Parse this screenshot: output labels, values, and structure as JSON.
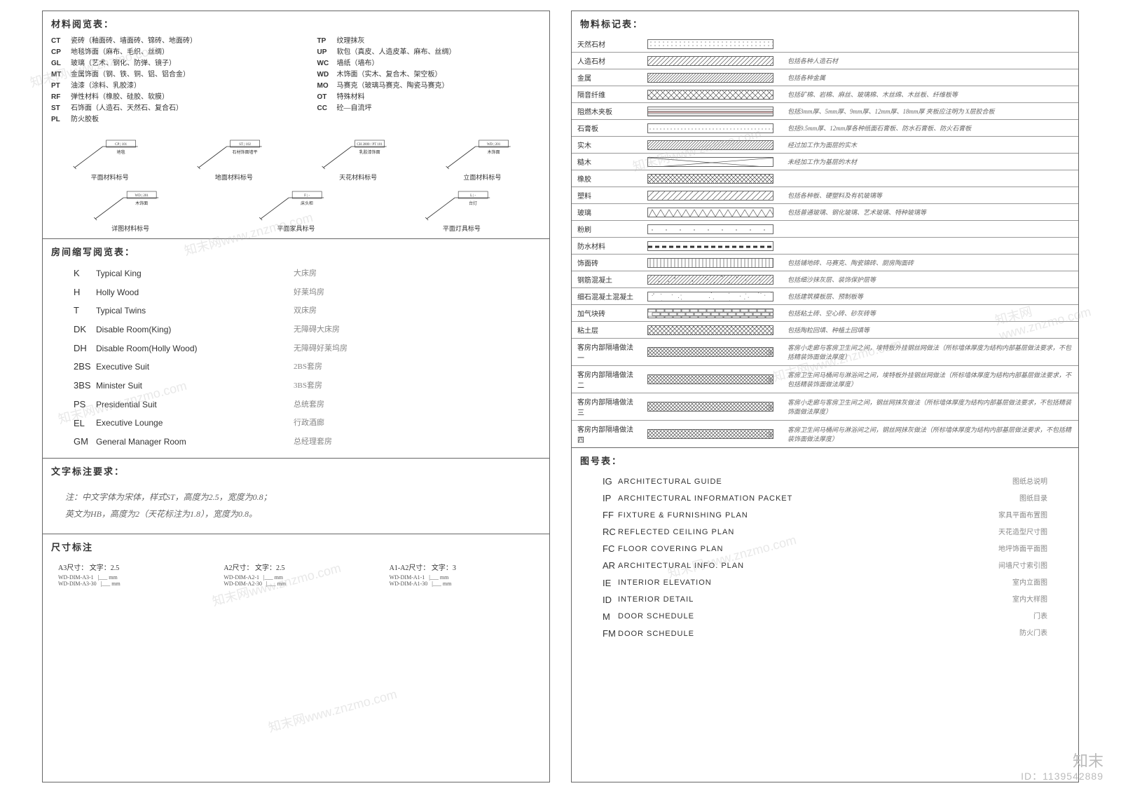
{
  "colors": {
    "border": "#666666",
    "text": "#333333",
    "muted": "#888888",
    "bg": "#ffffff"
  },
  "watermark": {
    "text": "知末网www.znzmo.com",
    "corner_label": "知末",
    "corner_id": "ID：1139542889"
  },
  "left": {
    "materialCodes": {
      "title": "材料阅览表：",
      "left_col": [
        {
          "code": "CT",
          "desc": "瓷砖（釉面砖、墙面砖、锦砖、地面砖）"
        },
        {
          "code": "CP",
          "desc": "地毯饰面（麻布、毛织、丝绸）"
        },
        {
          "code": "GL",
          "desc": "玻璃（艺术、钢化、防弹、镜子）"
        },
        {
          "code": "MT",
          "desc": "金属饰面（钢、铁、铜、铝、铝合金）"
        },
        {
          "code": "PT",
          "desc": "油漆（涂料、乳胶漆）"
        },
        {
          "code": "RF",
          "desc": "弹性材料（橡胶、硅胶、软膜）"
        },
        {
          "code": "ST",
          "desc": "石饰面（人造石、天然石、复合石）"
        },
        {
          "code": "PL",
          "desc": "防火胶板"
        }
      ],
      "right_col": [
        {
          "code": "TP",
          "desc": "纹理抹灰"
        },
        {
          "code": "UP",
          "desc": "软包（真皮、人造皮革、麻布、丝绸）"
        },
        {
          "code": "WC",
          "desc": "墙纸（墙布）"
        },
        {
          "code": "WD",
          "desc": "木饰面（实木、复合木、架空板）"
        },
        {
          "code": "MO",
          "desc": "马赛克（玻璃马赛克、陶瓷马赛克）"
        },
        {
          "code": "OT",
          "desc": "特殊材料"
        },
        {
          "code": "CC",
          "desc": "砼—自流坪"
        }
      ],
      "symbols_row1": [
        {
          "tag": "CP | 101",
          "name": "地毯",
          "caption": "平面材料标号"
        },
        {
          "tag": "ST | 102",
          "name": "石材饰面墙平",
          "caption": "地面材料标号"
        },
        {
          "tag": "CH 2800 / PT 101",
          "name": "乳胶漆饰面",
          "caption": "天花材料标号"
        },
        {
          "tag": "WD | 201",
          "name": "木饰面",
          "caption": "立面材料标号"
        }
      ],
      "symbols_row2": [
        {
          "tag": "WD | 201",
          "name": "木饰面",
          "caption": "详图材料标号"
        },
        {
          "tag": "F | -",
          "name": "床头柜",
          "caption": "平面家具标号"
        },
        {
          "tag": "L | -",
          "name": "台灯",
          "caption": "平面灯具标号"
        }
      ]
    },
    "roomAbbr": {
      "title": "房间缩写阅览表：",
      "rows": [
        {
          "code": "K",
          "en": "Typical King",
          "cn": "大床房"
        },
        {
          "code": "H",
          "en": "Holly Wood",
          "cn": "好莱坞房"
        },
        {
          "code": "T",
          "en": "Typical Twins",
          "cn": "双床房"
        },
        {
          "code": "DK",
          "en": "Disable Room(King)",
          "cn": "无障碍大床房"
        },
        {
          "code": "DH",
          "en": "Disable Room(Holly Wood)",
          "cn": "无障碍好莱坞房"
        },
        {
          "code": "2BS",
          "en": "Executive Suit",
          "cn": "2BS套房"
        },
        {
          "code": "3BS",
          "en": "Minister Suit",
          "cn": "3BS套房"
        },
        {
          "code": "PS",
          "en": "Presidential Suit",
          "cn": "总统套房"
        },
        {
          "code": "EL",
          "en": "Executive Lounge",
          "cn": "行政酒廊"
        },
        {
          "code": "GM",
          "en": "General Manager Room",
          "cn": "总经理套房"
        }
      ]
    },
    "textNote": {
      "title": "文字标注要求：",
      "line1": "注：中文字体为宋体，样式ST，高度为2.5，宽度为0.8；",
      "line2": "英文为HB，高度为2（天花标注为1.8），宽度为0.8。"
    },
    "dimNote": {
      "title": "尺寸标注",
      "items": [
        {
          "t": "A3尺寸：  文字：2.5",
          "s1": "WD-DIM-A3-1",
          "s2": "WD-DIM-A3-30"
        },
        {
          "t": "A2尺寸：  文字：2.5",
          "s1": "WD-DIM-A2-1",
          "s2": "WD-DIM-A2-30"
        },
        {
          "t": "A1-A2尺寸：  文字：3",
          "s1": "WD-DIM-A1-1",
          "s2": "WD-DIM-A1-30"
        }
      ]
    }
  },
  "right": {
    "materialMarks": {
      "title": "物料标记表：",
      "rows": [
        {
          "name": "天然石材",
          "pattern": "dots",
          "desc": ""
        },
        {
          "name": "人造石材",
          "pattern": "diag-l",
          "desc": "包括各种人造石材"
        },
        {
          "name": "金属",
          "pattern": "diag-d",
          "desc": "包括各种金属"
        },
        {
          "name": "隔音纤维",
          "pattern": "xhatch",
          "desc": "包括矿棉、岩棉、麻丝、玻璃棉、木丝绵、木丝板、纤维板等"
        },
        {
          "name": "阻燃木夹板",
          "pattern": "layered",
          "desc": "包括3mm厚、5mm厚、9mm厚、12mm厚、18mm厚 夹板应注明为 X层胶合板"
        },
        {
          "name": "石膏板",
          "pattern": "dots2",
          "desc": "包括9.5mm厚、12mm厚各种纸面石膏板、防水石膏板、防火石膏板"
        },
        {
          "name": "实木",
          "pattern": "diag-rd",
          "desc": "经过加工作为面层的实木"
        },
        {
          "name": "糙木",
          "pattern": "cross",
          "desc": "未经加工作为基层的木材"
        },
        {
          "name": "橡胶",
          "pattern": "xhatch2",
          "desc": ""
        },
        {
          "name": "塑料",
          "pattern": "diag-s",
          "desc": "包括各种板、硬塑料及有机玻璃等"
        },
        {
          "name": "玻璃",
          "pattern": "zigzag",
          "desc": "包括普通玻璃、钢化玻璃、艺术玻璃、特种玻璃等"
        },
        {
          "name": "粉刷",
          "pattern": "sparse",
          "desc": ""
        },
        {
          "name": "防水材料",
          "pattern": "dashline",
          "desc": ""
        },
        {
          "name": "饰面砖",
          "pattern": "vlines",
          "desc": "包括铺地砖、马赛克、陶瓷锦砖、厨房陶面砖"
        },
        {
          "name": "钢筋混凝土",
          "pattern": "concrete",
          "desc": "包括细沙抹灰层、装饰保护层等"
        },
        {
          "name": "细石混凝土混凝土",
          "pattern": "fine",
          "desc": "包括建筑模板层、预制板等"
        },
        {
          "name": "加气块砖",
          "pattern": "brick",
          "desc": "包括粘土砖、空心砖、砂灰砖等"
        },
        {
          "name": "粘土层",
          "pattern": "xhatch3",
          "desc": "包括陶粒回填、种植土回填等"
        },
        {
          "name": "客房内部隔墙做法一",
          "pattern": "wall1",
          "desc": "客房小走廊与客房卫生间之间，埃特板外挂钢丝网做法（所标墙体厚度为结构内部基层做法要求，不包括精装饰面做法厚度）"
        },
        {
          "name": "客房内部隔墙做法二",
          "pattern": "wall2",
          "desc": "客房卫生间马桶间与淋浴间之间，埃特板外挂钢丝网做法（所标墙体厚度为结构内部基层做法要求，不包括精装饰面做法厚度）"
        },
        {
          "name": "客房内部隔墙做法三",
          "pattern": "wall3",
          "desc": "客房小走廊与客房卫生间之间，钢丝网抹灰做法（所标墙体厚度为结构内部基层做法要求，不包括精装饰面做法厚度）"
        },
        {
          "name": "客房内部隔墙做法四",
          "pattern": "wall4",
          "desc": "客房卫生间马桶间与淋浴间之间，钢丝网抹灰做法（所标墙体厚度为结构内部基层做法要求，不包括精装饰面做法厚度）"
        }
      ]
    },
    "drawingCodes": {
      "title": "图号表：",
      "rows": [
        {
          "code": "IG",
          "en": "ARCHITECTURAL GUIDE",
          "cn": "图纸总说明"
        },
        {
          "code": "IP",
          "en": "ARCHITECTURAL INFORMATION PACKET",
          "cn": "图纸目录"
        },
        {
          "code": "FF",
          "en": "FIXTURE & FURNISHING PLAN",
          "cn": "家具平面布置图"
        },
        {
          "code": "RC",
          "en": "REFLECTED CEILING PLAN",
          "cn": "天花造型尺寸图"
        },
        {
          "code": "FC",
          "en": "FLOOR COVERING PLAN",
          "cn": "地坪饰面平面图"
        },
        {
          "code": "AR",
          "en": "ARCHITECTURAL INFO.  PLAN",
          "cn": "间墙尺寸索引图"
        },
        {
          "code": "IE",
          "en": "INTERIOR ELEVATION",
          "cn": "室内立面图"
        },
        {
          "code": "ID",
          "en": "INTERIOR DETAIL",
          "cn": "室内大样图"
        },
        {
          "code": "M",
          "en": "DOOR SCHEDULE",
          "cn": "门表"
        },
        {
          "code": "FM",
          "en": "DOOR SCHEDULE",
          "cn": "防火门表"
        }
      ]
    }
  }
}
